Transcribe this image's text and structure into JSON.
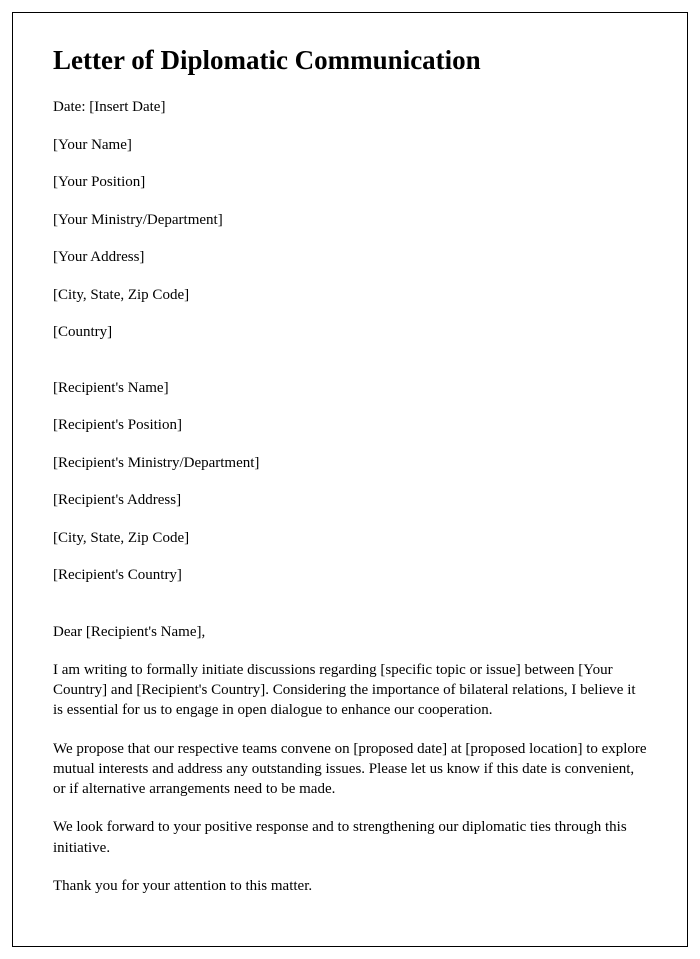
{
  "title": "Letter of Diplomatic Communication",
  "sender": {
    "date": "Date: [Insert Date]",
    "name": "[Your Name]",
    "position": "[Your Position]",
    "ministry": "[Your Ministry/Department]",
    "address": "[Your Address]",
    "city_state_zip": "[City, State, Zip Code]",
    "country": "[Country]"
  },
  "recipient": {
    "name": "[Recipient's Name]",
    "position": "[Recipient's Position]",
    "ministry": "[Recipient's Ministry/Department]",
    "address": "[Recipient's Address]",
    "city_state_zip": "[City, State, Zip Code]",
    "country": "[Recipient's Country]"
  },
  "salutation": "Dear [Recipient's Name],",
  "body": {
    "para1": "I am writing to formally initiate discussions regarding [specific topic or issue] between [Your Country] and [Recipient's Country]. Considering the importance of bilateral relations, I believe it is essential for us to engage in open dialogue to enhance our cooperation.",
    "para2": "We propose that our respective teams convene on [proposed date] at [proposed location] to explore mutual interests and address any outstanding issues. Please let us know if this date is convenient, or if alternative arrangements need to be made.",
    "para3": "We look forward to your positive response and to strengthening our diplomatic ties through this initiative.",
    "para4": "Thank you for your attention to this matter."
  },
  "style": {
    "background_color": "#ffffff",
    "border_color": "#000000",
    "text_color": "#000000",
    "title_fontsize": 27,
    "body_fontsize": 15,
    "font_family": "Georgia, Times New Roman, serif"
  }
}
